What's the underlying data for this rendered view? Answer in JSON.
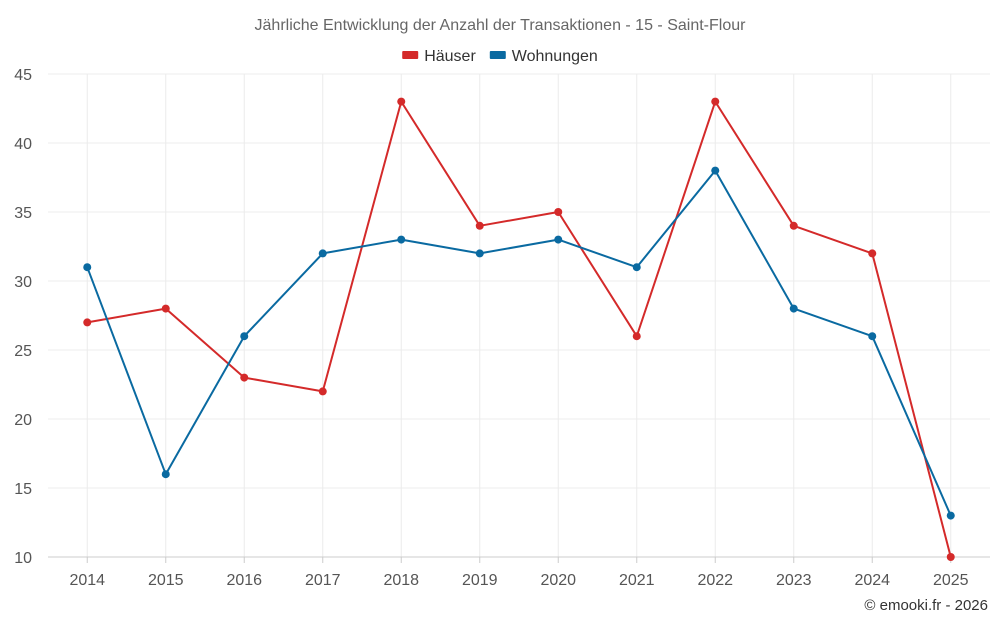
{
  "chart_data": {
    "type": "line",
    "title": "Jährliche Entwicklung der Anzahl der Transaktionen - 15 - Saint-Flour",
    "categories": [
      "2014",
      "2015",
      "2016",
      "2017",
      "2018",
      "2019",
      "2020",
      "2021",
      "2022",
      "2023",
      "2024",
      "2025"
    ],
    "ylim": [
      10,
      45
    ],
    "yticks": [
      10,
      15,
      20,
      25,
      30,
      35,
      40,
      45
    ],
    "xlabel": "",
    "ylabel": "",
    "grid": true,
    "legend_position": "top-center",
    "series": [
      {
        "name": "Häuser",
        "color": "#d42a2a",
        "values": [
          27,
          28,
          23,
          22,
          43,
          34,
          35,
          26,
          43,
          34,
          32,
          10
        ]
      },
      {
        "name": "Wohnungen",
        "color": "#0a6aa1",
        "values": [
          31,
          16,
          26,
          32,
          33,
          32,
          33,
          31,
          38,
          28,
          26,
          13
        ]
      }
    ],
    "credit": "© emooki.fr - 2026"
  }
}
